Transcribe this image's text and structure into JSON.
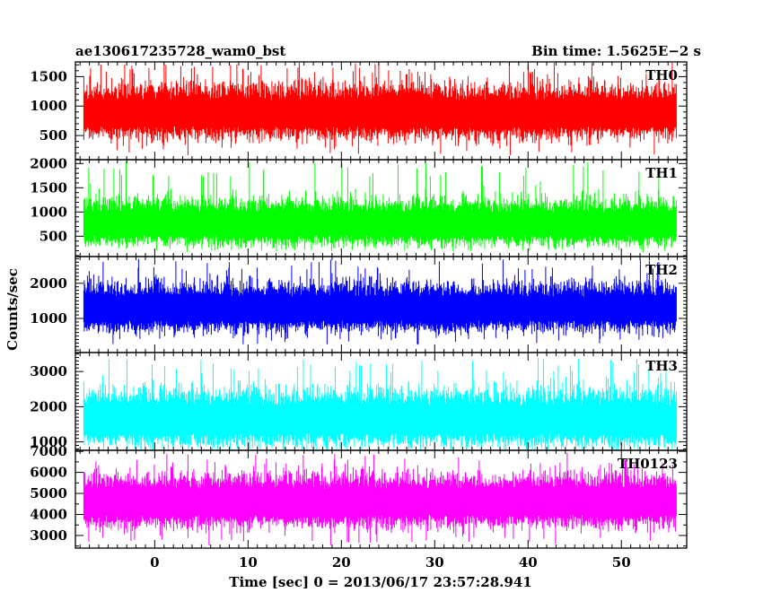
{
  "header": {
    "left": "ae130617235728_wam0_bst",
    "right": "Bin time: 1.5625E−2 s"
  },
  "xlabel": "Time [sec] 0 = 2013/06/17 23:57:28.941",
  "ylabel": "Counts/sec",
  "chart_data": {
    "type": "line",
    "xlim": [
      -8.5,
      57
    ],
    "data_range": [
      -7.6,
      55.9
    ],
    "bin_time": 0.015625,
    "x_ticks": [
      "0",
      "10",
      "20",
      "30",
      "40",
      "50"
    ],
    "x_tick_values": [
      0,
      10,
      20,
      30,
      40,
      50
    ],
    "series": [
      {
        "name": "TH0",
        "color": "#ff0000",
        "ylim": [
          90,
          1750
        ],
        "yticks": [
          500,
          1000,
          1500
        ],
        "mean": 880,
        "spread": 200,
        "min_approx": 150,
        "max_approx": 1750
      },
      {
        "name": "TH1",
        "color": "#00ff00",
        "ylim": [
          80,
          2080
        ],
        "yticks": [
          500,
          1000,
          1500,
          2000
        ],
        "mean": 760,
        "spread": 210,
        "min_approx": 200,
        "max_approx": 2050
      },
      {
        "name": "TH2",
        "color": "#0000ff",
        "ylim": [
          30,
          2760
        ],
        "yticks": [
          1000,
          2000
        ],
        "mean": 1280,
        "spread": 300,
        "min_approx": 250,
        "max_approx": 2700
      },
      {
        "name": "TH3",
        "color": "#00ffff",
        "ylim": [
          760,
          3540
        ],
        "yticks": [
          1000,
          2000,
          3000
        ],
        "mean": 1640,
        "spread": 350,
        "min_approx": 850,
        "max_approx": 3400
      },
      {
        "name": "TH0123",
        "color": "#ff00ff",
        "ylim": [
          2400,
          7050
        ],
        "yticks": [
          3000,
          4000,
          5000,
          6000,
          7000
        ],
        "mean": 4600,
        "spread": 560,
        "min_approx": 2500,
        "max_approx": 6950
      }
    ]
  }
}
